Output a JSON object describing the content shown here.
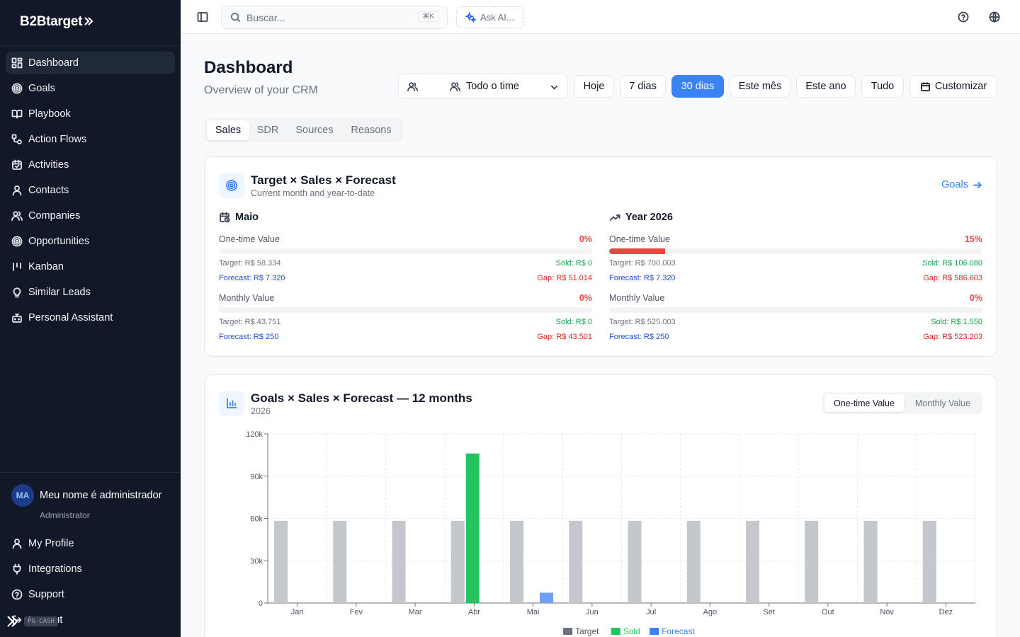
{
  "sidebar": {
    "logo": "B2Btarget",
    "items": [
      {
        "label": "Dashboard",
        "icon": "dashboard-icon",
        "active": true
      },
      {
        "label": "Goals",
        "icon": "target-icon"
      },
      {
        "label": "Playbook",
        "icon": "book-icon"
      },
      {
        "label": "Action Flows",
        "icon": "flow-icon"
      },
      {
        "label": "Activities",
        "icon": "calendar-check-icon"
      },
      {
        "label": "Contacts",
        "icon": "user-icon"
      },
      {
        "label": "Companies",
        "icon": "users-icon"
      },
      {
        "label": "Opportunities",
        "icon": "target-icon"
      },
      {
        "label": "Kanban",
        "icon": "kanban-icon"
      },
      {
        "label": "Similar Leads",
        "icon": "lightbulb-icon"
      },
      {
        "label": "Personal Assistant",
        "icon": "bot-icon"
      }
    ],
    "user": {
      "initials": "MA",
      "name": "Meu nome é administrador",
      "role": "Administrator"
    },
    "bottom_items": [
      {
        "label": "My Profile",
        "icon": "user-icon"
      },
      {
        "label": "Integrations",
        "icon": "plug-icon"
      },
      {
        "label": "Support",
        "icon": "help-circle-icon"
      },
      {
        "label": "Log out",
        "icon": "logout-icon"
      }
    ],
    "env_tag": "PG-CASH"
  },
  "topbar": {
    "search_placeholder": "Buscar...",
    "search_shortcut": "⌘K",
    "ask_ai": "Ask AI..."
  },
  "header": {
    "title": "Dashboard",
    "subtitle": "Overview of your CRM",
    "team_select": "Todo o time",
    "periods": [
      "Hoje",
      "7 dias",
      "30 dias",
      "Este mês",
      "Este ano",
      "Tudo"
    ],
    "active_period": "30 dias",
    "customize": "Customizar"
  },
  "tabs": [
    "Sales",
    "SDR",
    "Sources",
    "Reasons"
  ],
  "active_tab": "Sales",
  "target_card": {
    "title": "Target × Sales × Forecast",
    "subtitle": "Current month and year-to-date",
    "link": "Goals",
    "month": {
      "label": "Maio",
      "one_time": {
        "name": "One-time Value",
        "pct": "0%",
        "progress": 0,
        "target": "Target: R$ 58.334",
        "sold": "Sold: R$ 0",
        "forecast": "Forecast: R$ 7.320",
        "gap": "Gap: R$ 51.014"
      },
      "monthly": {
        "name": "Monthly Value",
        "pct": "0%",
        "progress": 0,
        "target": "Target: R$ 43.751",
        "sold": "Sold: R$ 0",
        "forecast": "Forecast: R$ 250",
        "gap": "Gap: R$ 43.501"
      }
    },
    "year": {
      "label": "Year 2026",
      "one_time": {
        "name": "One-time Value",
        "pct": "15%",
        "progress": 0.15,
        "target": "Target: R$ 700.003",
        "sold": "Sold: R$ 106.080",
        "forecast": "Forecast: R$ 7.320",
        "gap": "Gap: R$ 586.603"
      },
      "monthly": {
        "name": "Monthly Value",
        "pct": "0%",
        "progress": 0,
        "target": "Target: R$ 525.003",
        "sold": "Sold: R$ 1.550",
        "forecast": "Forecast: R$ 250",
        "gap": "Gap: R$ 523.203"
      }
    }
  },
  "chart_card": {
    "title": "Goals × Sales × Forecast — 12 months",
    "subtitle": "2026",
    "toggle": [
      "One-time Value",
      "Monthly Value"
    ],
    "active_toggle": "One-time Value"
  },
  "chart_data": {
    "type": "bar",
    "categories": [
      "Jan",
      "Fev",
      "Mar",
      "Abr",
      "Mai",
      "Jun",
      "Jul",
      "Ago",
      "Set",
      "Out",
      "Nov",
      "Dez"
    ],
    "series": [
      {
        "name": "Target",
        "color": "#c4c7cc",
        "legend_color": "#6b7280",
        "values": [
          58334,
          58334,
          58334,
          58334,
          58334,
          58334,
          58334,
          58334,
          58334,
          58334,
          58334,
          58334
        ]
      },
      {
        "name": "Sold",
        "color": "#22c55e",
        "legend_color": "#22c55e",
        "values": [
          0,
          0,
          0,
          106080,
          0,
          0,
          0,
          0,
          0,
          0,
          0,
          0
        ]
      },
      {
        "name": "Forecast",
        "color": "#6ea0f7",
        "legend_color": "#3b82f6",
        "values": [
          0,
          0,
          0,
          0,
          7320,
          0,
          0,
          0,
          0,
          0,
          0,
          0
        ]
      }
    ],
    "yticks": [
      0,
      30000,
      60000,
      90000,
      120000
    ],
    "ytick_labels": [
      "0",
      "30k",
      "60k",
      "90k",
      "120k"
    ],
    "ylim": [
      0,
      120000
    ],
    "grid": true,
    "legend_position": "bottom"
  }
}
